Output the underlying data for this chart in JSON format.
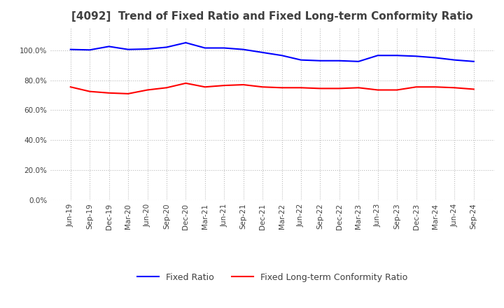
{
  "title": "[4092]  Trend of Fixed Ratio and Fixed Long-term Conformity Ratio",
  "x_labels": [
    "Jun-19",
    "Sep-19",
    "Dec-19",
    "Mar-20",
    "Jun-20",
    "Sep-20",
    "Dec-20",
    "Mar-21",
    "Jun-21",
    "Sep-21",
    "Dec-21",
    "Mar-22",
    "Jun-22",
    "Sep-22",
    "Dec-22",
    "Mar-23",
    "Jun-23",
    "Sep-23",
    "Dec-23",
    "Mar-24",
    "Jun-24",
    "Sep-24"
  ],
  "fixed_ratio": [
    100.5,
    100.2,
    102.5,
    100.5,
    100.8,
    102.0,
    105.0,
    101.5,
    101.5,
    100.5,
    98.5,
    96.5,
    93.5,
    93.0,
    93.0,
    92.5,
    96.5,
    96.5,
    96.0,
    95.0,
    93.5,
    92.5
  ],
  "fixed_lt_ratio": [
    75.5,
    72.5,
    71.5,
    71.0,
    73.5,
    75.0,
    78.0,
    75.5,
    76.5,
    77.0,
    75.5,
    75.0,
    75.0,
    74.5,
    74.5,
    75.0,
    73.5,
    73.5,
    75.5,
    75.5,
    75.0,
    74.0
  ],
  "fixed_ratio_color": "#0000ff",
  "fixed_lt_ratio_color": "#ff0000",
  "background_color": "#ffffff",
  "plot_bg_color": "#ffffff",
  "grid_color": "#bbbbbb",
  "title_color": "#404040",
  "line_width": 1.5
}
